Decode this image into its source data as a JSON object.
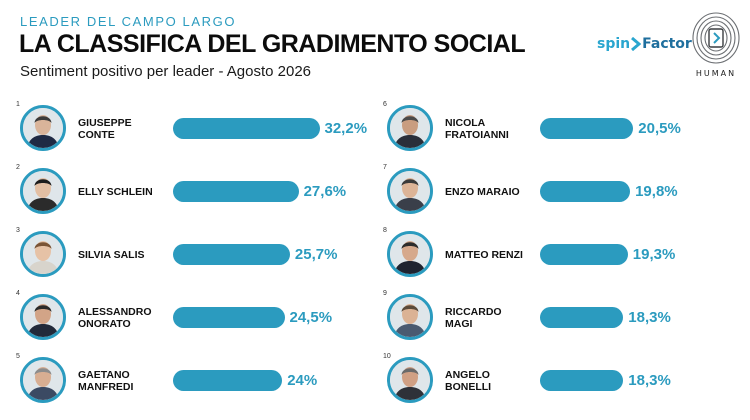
{
  "header": {
    "kicker": "LEADER DEL CAMPO LARGO",
    "title": "LA CLASSIFICA DEL GRADIMENTO SOCIAL",
    "subtitle": "Sentiment positivo per leader - Agosto 2026"
  },
  "logos": {
    "spinfactor_a": "spin",
    "spinfactor_b": "Factor",
    "human": "HUMAN"
  },
  "colors": {
    "accent": "#2b9bbf",
    "text": "#111111"
  },
  "chart_data": {
    "type": "bar",
    "title": "LA CLASSIFICA DEL GRADIMENTO SOCIAL",
    "subtitle": "Sentiment positivo per leader - Agosto 2026",
    "unit": "%",
    "categories": [
      "GIUSEPPE CONTE",
      "ELLY SCHLEIN",
      "SILVIA SALIS",
      "ALESSANDRO ONORATO",
      "GAETANO MANFREDI",
      "NICOLA FRATOIANNI",
      "ENZO MARAIO",
      "MATTEO RENZI",
      "RICCARDO MAGI",
      "ANGELO BONELLI"
    ],
    "values": [
      32.2,
      27.6,
      25.7,
      24.5,
      24,
      20.5,
      19.8,
      19.3,
      18.3,
      18.3
    ],
    "items": [
      {
        "rank": "1",
        "name": "GIUSEPPE\nCONTE",
        "value": 32.2,
        "label": "32,2%",
        "icon": "portrait-conte"
      },
      {
        "rank": "2",
        "name": "ELLY SCHLEIN",
        "value": 27.6,
        "label": "27,6%",
        "icon": "portrait-schlein"
      },
      {
        "rank": "3",
        "name": "SILVIA SALIS",
        "value": 25.7,
        "label": "25,7%",
        "icon": "portrait-salis"
      },
      {
        "rank": "4",
        "name": "ALESSANDRO\nONORATO",
        "value": 24.5,
        "label": "24,5%",
        "icon": "portrait-onorato"
      },
      {
        "rank": "5",
        "name": "GAETANO\nMANFREDI",
        "value": 24,
        "label": "24%",
        "icon": "portrait-manfredi"
      },
      {
        "rank": "6",
        "name": "NICOLA\nFRATOIANNI",
        "value": 20.5,
        "label": "20,5%",
        "icon": "portrait-fratoianni"
      },
      {
        "rank": "7",
        "name": "ENZO MARAIO",
        "value": 19.8,
        "label": "19,8%",
        "icon": "portrait-maraio"
      },
      {
        "rank": "8",
        "name": "MATTEO RENZI",
        "value": 19.3,
        "label": "19,3%",
        "icon": "portrait-renzi"
      },
      {
        "rank": "9",
        "name": "RICCARDO\nMAGI",
        "value": 18.3,
        "label": "18,3%",
        "icon": "portrait-magi"
      },
      {
        "rank": "10",
        "name": "ANGELO\nBONELLI",
        "value": 18.3,
        "label": "18,3%",
        "icon": "portrait-bonelli"
      }
    ],
    "grid": false,
    "legend": "none"
  }
}
